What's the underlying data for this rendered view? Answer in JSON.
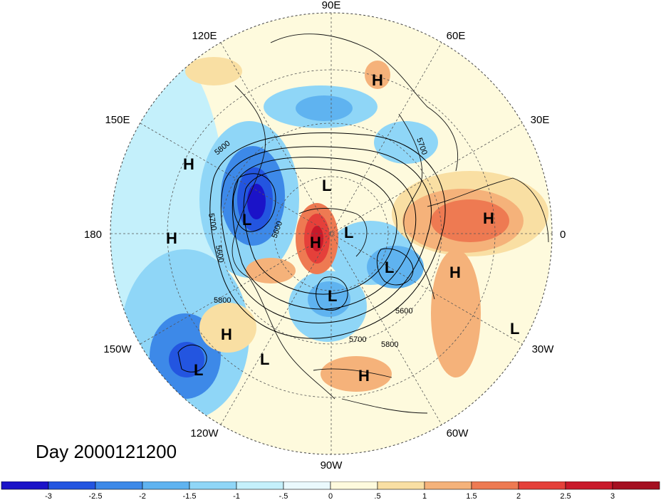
{
  "title": "Day 2000121200",
  "longitude_labels": [
    "90E",
    "60E",
    "30E",
    "0",
    "30W",
    "60W",
    "90W",
    "120W",
    "150W",
    "180",
    "150E",
    "120E"
  ],
  "contour_labels": [
    "5800",
    "5700",
    "5600",
    "5700",
    "5600",
    "5800",
    "5600",
    "5700",
    "5800"
  ],
  "pressure_centers": [
    {
      "type": "H",
      "lon": "north-asia"
    },
    {
      "type": "H",
      "lon": "pacific-west"
    },
    {
      "type": "H",
      "lon": "pacific-date-line"
    },
    {
      "type": "L",
      "lon": "east-siberia"
    },
    {
      "type": "L",
      "lon": "arctic-siberia"
    },
    {
      "type": "H",
      "lon": "alaska-arctic"
    },
    {
      "type": "L",
      "lon": "canadian-arctic"
    },
    {
      "type": "L",
      "lon": "greenland"
    },
    {
      "type": "L",
      "lon": "hudson-bay"
    },
    {
      "type": "H",
      "lon": "gulf-of-alaska"
    },
    {
      "type": "L",
      "lon": "north-pacific"
    },
    {
      "type": "L",
      "lon": "west-coast"
    },
    {
      "type": "H",
      "lon": "caribbean"
    },
    {
      "type": "H",
      "lon": "europe"
    },
    {
      "type": "H",
      "lon": "north-atlantic"
    },
    {
      "type": "L",
      "lon": "central-atlantic"
    }
  ],
  "colorbar": {
    "ticks": [
      "-3",
      "-2.5",
      "-2",
      "-1.5",
      "-1",
      "-.5",
      "0",
      ".5",
      "1",
      "1.5",
      "2",
      "2.5",
      "3"
    ],
    "colors": [
      "#1b13c8",
      "#2355e0",
      "#3d89e8",
      "#5fb3f0",
      "#8fd6f7",
      "#c4f0fb",
      "#eaf9fd",
      "#fefadd",
      "#f9dfa3",
      "#f5b27a",
      "#ee7a52",
      "#e5403a",
      "#c9192a",
      "#a50f20"
    ]
  }
}
